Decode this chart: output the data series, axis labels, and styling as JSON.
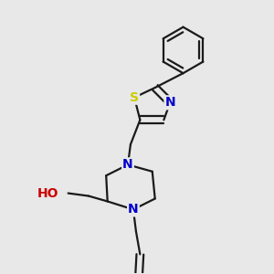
{
  "background_color": "#e8e8e8",
  "bond_color": "#1a1a1a",
  "bond_width": 1.6,
  "atom_S_color": "#cccc00",
  "atom_N_color": "#0000cc",
  "atom_O_color": "#cc0000",
  "atom_H_color": "#008080",
  "figsize": [
    3.0,
    3.0
  ],
  "dpi": 100,
  "xlim": [
    0.0,
    1.0
  ],
  "ylim": [
    0.0,
    1.0
  ]
}
